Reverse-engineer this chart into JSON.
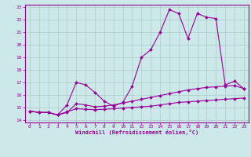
{
  "background_color": "#cce8e8",
  "grid_color": "#aacccc",
  "line_color": "#990099",
  "marker": "D",
  "marker_size": 2,
  "xlabel": "Windchill (Refroidissement éolien,°C)",
  "tick_color": "#990099",
  "xlim": [
    -0.5,
    23.5
  ],
  "ylim": [
    13.8,
    23.2
  ],
  "yticks": [
    14,
    15,
    16,
    17,
    18,
    19,
    20,
    21,
    22,
    23
  ],
  "xticks": [
    0,
    1,
    2,
    3,
    4,
    5,
    6,
    7,
    8,
    9,
    10,
    11,
    12,
    13,
    14,
    15,
    16,
    17,
    18,
    19,
    20,
    21,
    22,
    23
  ],
  "series": [
    {
      "x": [
        0,
        1,
        2,
        3,
        4,
        5,
        6,
        7,
        8,
        9,
        10,
        11,
        12,
        13,
        14,
        15,
        16,
        17,
        18,
        19,
        20,
        21,
        22,
        23
      ],
      "y": [
        14.7,
        14.6,
        14.6,
        14.4,
        15.2,
        17.0,
        16.8,
        16.2,
        15.5,
        15.1,
        15.4,
        16.7,
        19.0,
        19.6,
        21.0,
        22.8,
        22.5,
        20.5,
        22.5,
        22.2,
        22.1,
        16.8,
        17.1,
        16.5
      ]
    },
    {
      "x": [
        0,
        1,
        2,
        3,
        4,
        5,
        6,
        7,
        8,
        9,
        10,
        11,
        12,
        13,
        14,
        15,
        16,
        17,
        18,
        19,
        20,
        21,
        22,
        23
      ],
      "y": [
        14.7,
        14.6,
        14.6,
        14.4,
        14.6,
        15.3,
        15.2,
        15.05,
        15.1,
        15.2,
        15.35,
        15.5,
        15.65,
        15.8,
        15.95,
        16.1,
        16.25,
        16.4,
        16.5,
        16.6,
        16.65,
        16.7,
        16.75,
        16.5
      ]
    },
    {
      "x": [
        0,
        1,
        2,
        3,
        4,
        5,
        6,
        7,
        8,
        9,
        10,
        11,
        12,
        13,
        14,
        15,
        16,
        17,
        18,
        19,
        20,
        21,
        22,
        23
      ],
      "y": [
        14.7,
        14.6,
        14.6,
        14.4,
        14.65,
        14.9,
        14.85,
        14.82,
        14.85,
        14.9,
        14.95,
        15.0,
        15.05,
        15.1,
        15.2,
        15.3,
        15.4,
        15.45,
        15.5,
        15.55,
        15.6,
        15.65,
        15.7,
        15.75
      ]
    }
  ]
}
